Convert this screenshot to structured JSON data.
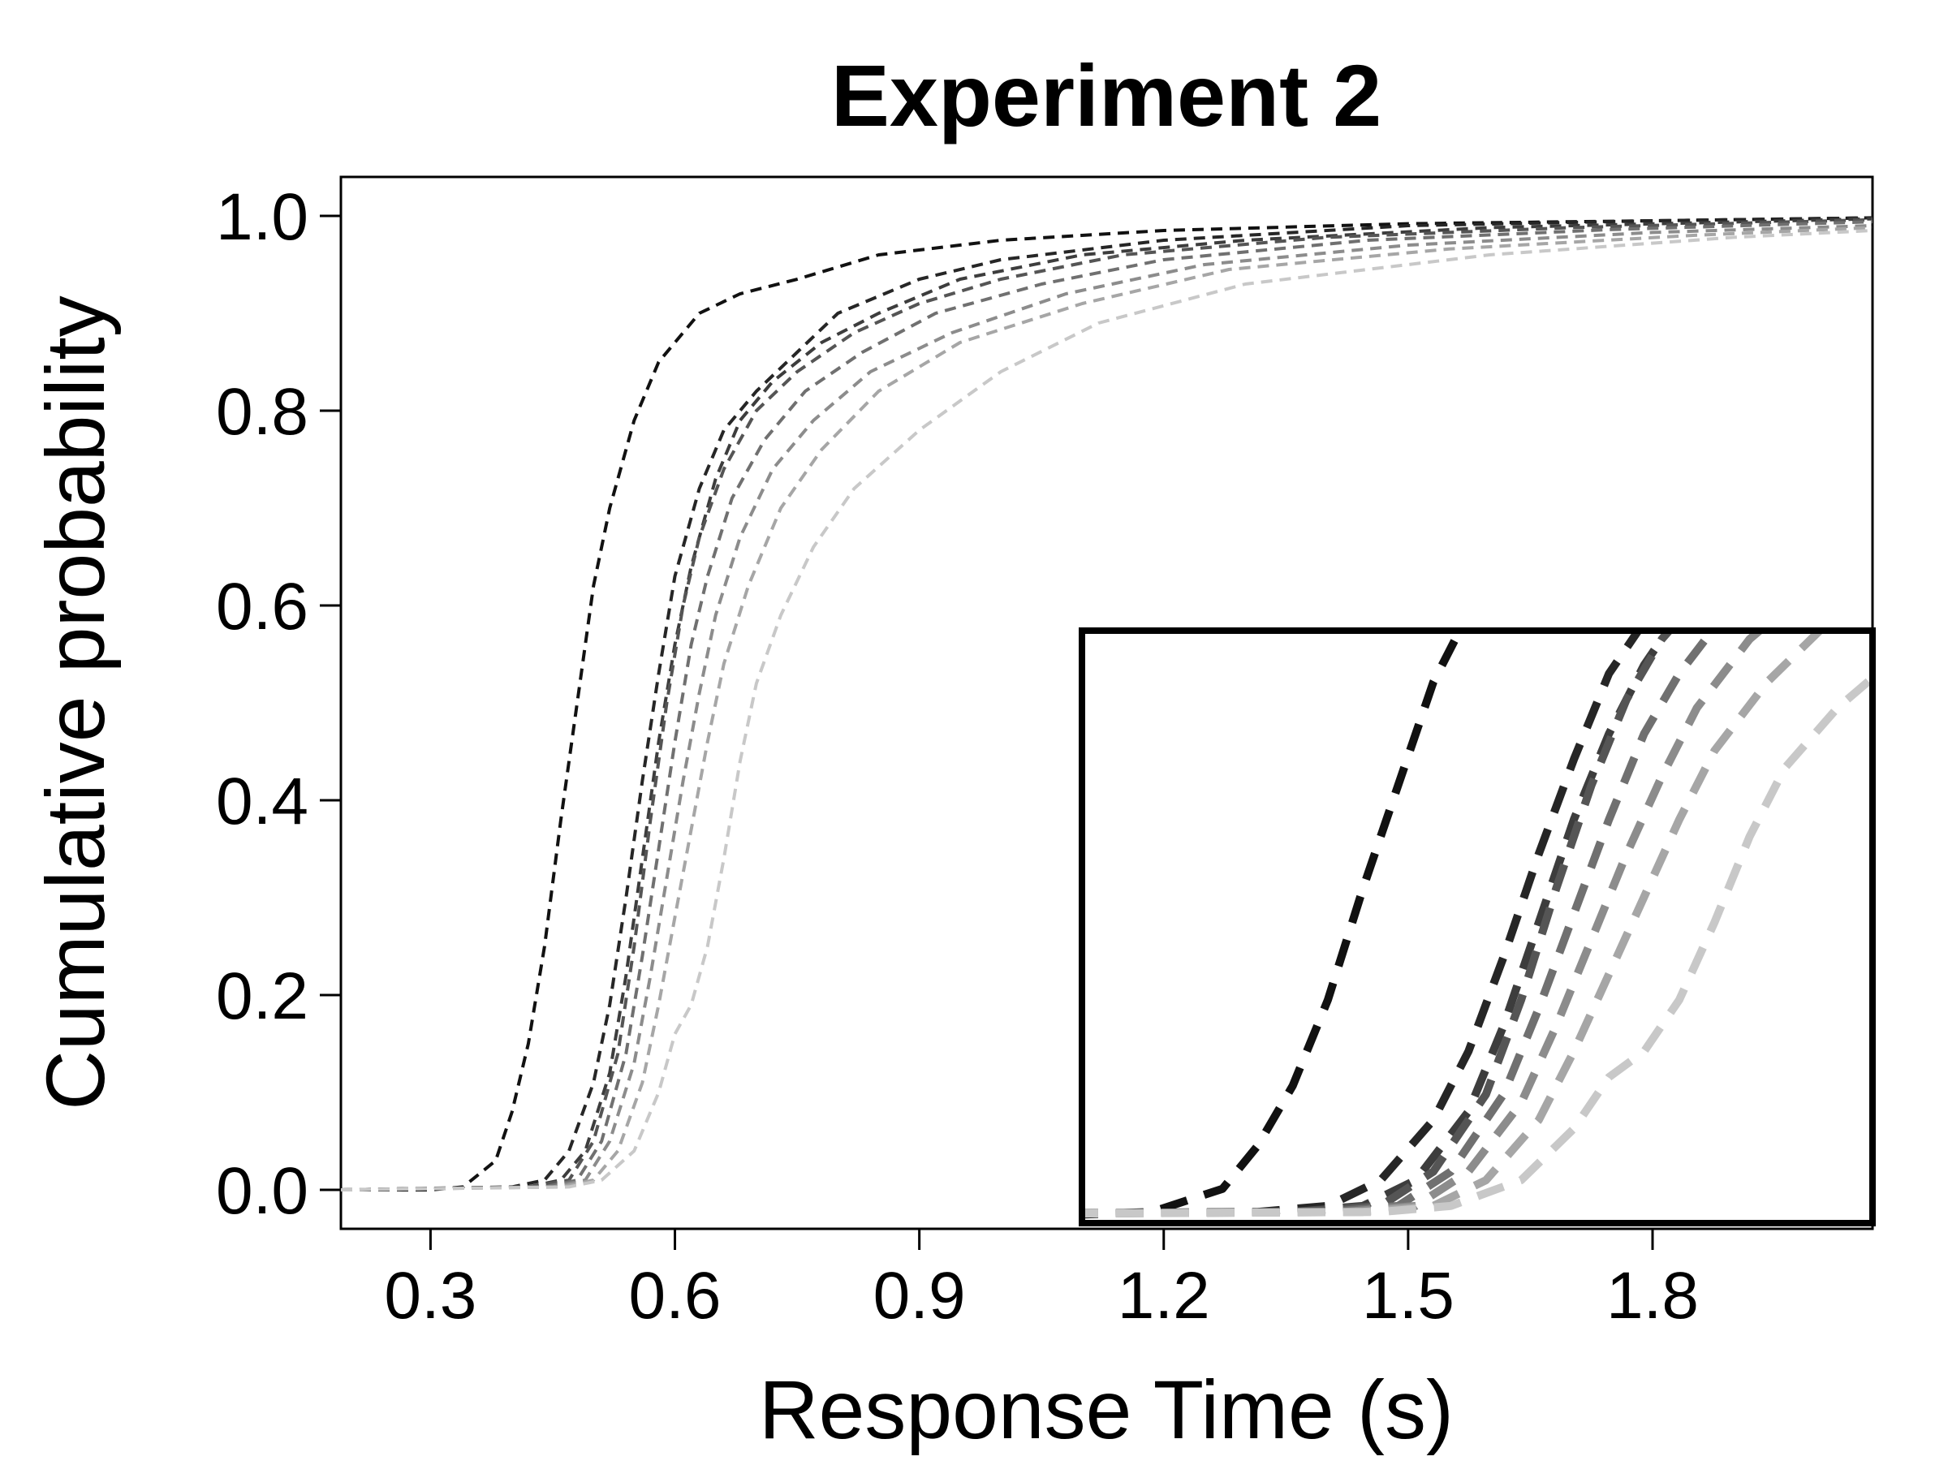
{
  "chart_data": {
    "type": "line",
    "title": "Experiment 2",
    "xlabel": "Response Time (s)",
    "ylabel": "Cumulative probability",
    "xlim": [
      0.19,
      2.07
    ],
    "ylim": [
      -0.04,
      1.04
    ],
    "xticks": [
      0.3,
      0.6,
      0.9,
      1.2,
      1.5,
      1.8
    ],
    "xtick_labels": [
      "0.3",
      "0.6",
      "0.9",
      "1.2",
      "1.5",
      "1.8"
    ],
    "yticks": [
      0.0,
      0.2,
      0.4,
      0.6,
      0.8,
      1.0
    ],
    "ytick_labels": [
      "0.0",
      "0.2",
      "0.4",
      "0.6",
      "0.8",
      "1.0"
    ],
    "line_style": "dashed",
    "grid": false,
    "inset": {
      "shown": true,
      "xlim": [
        0.3,
        0.75
      ],
      "ylim": [
        -0.01,
        0.68
      ]
    },
    "series": [
      {
        "color": "#111111",
        "points": [
          [
            0.19,
            0
          ],
          [
            0.3,
            0
          ],
          [
            0.34,
            0.003
          ],
          [
            0.38,
            0.03
          ],
          [
            0.4,
            0.08
          ],
          [
            0.42,
            0.15
          ],
          [
            0.44,
            0.25
          ],
          [
            0.46,
            0.38
          ],
          [
            0.48,
            0.5
          ],
          [
            0.5,
            0.62
          ],
          [
            0.52,
            0.7
          ],
          [
            0.55,
            0.79
          ],
          [
            0.58,
            0.85
          ],
          [
            0.6,
            0.87
          ],
          [
            0.63,
            0.9
          ],
          [
            0.68,
            0.92
          ],
          [
            0.75,
            0.935
          ],
          [
            0.85,
            0.96
          ],
          [
            1.0,
            0.975
          ],
          [
            1.2,
            0.985
          ],
          [
            1.5,
            0.992
          ],
          [
            1.8,
            0.995
          ],
          [
            2.07,
            0.998
          ]
        ]
      },
      {
        "color": "#262626",
        "points": [
          [
            0.19,
            0
          ],
          [
            0.4,
            0.003
          ],
          [
            0.44,
            0.01
          ],
          [
            0.47,
            0.04
          ],
          [
            0.5,
            0.11
          ],
          [
            0.52,
            0.19
          ],
          [
            0.54,
            0.3
          ],
          [
            0.56,
            0.42
          ],
          [
            0.58,
            0.53
          ],
          [
            0.6,
            0.63
          ],
          [
            0.63,
            0.72
          ],
          [
            0.66,
            0.78
          ],
          [
            0.7,
            0.82
          ],
          [
            0.75,
            0.86
          ],
          [
            0.8,
            0.9
          ],
          [
            0.9,
            0.935
          ],
          [
            1.0,
            0.955
          ],
          [
            1.2,
            0.975
          ],
          [
            1.5,
            0.99
          ],
          [
            1.8,
            0.995
          ],
          [
            2.07,
            0.998
          ]
        ]
      },
      {
        "color": "#3d3d3d",
        "points": [
          [
            0.19,
            0
          ],
          [
            0.42,
            0.003
          ],
          [
            0.46,
            0.01
          ],
          [
            0.49,
            0.04
          ],
          [
            0.52,
            0.12
          ],
          [
            0.54,
            0.22
          ],
          [
            0.56,
            0.34
          ],
          [
            0.58,
            0.46
          ],
          [
            0.6,
            0.56
          ],
          [
            0.62,
            0.64
          ],
          [
            0.65,
            0.73
          ],
          [
            0.68,
            0.79
          ],
          [
            0.72,
            0.83
          ],
          [
            0.78,
            0.87
          ],
          [
            0.85,
            0.9
          ],
          [
            0.95,
            0.935
          ],
          [
            1.1,
            0.96
          ],
          [
            1.3,
            0.975
          ],
          [
            1.6,
            0.988
          ],
          [
            2.07,
            0.997
          ]
        ]
      },
      {
        "color": "#555555",
        "points": [
          [
            0.19,
            0
          ],
          [
            0.42,
            0.003
          ],
          [
            0.47,
            0.01
          ],
          [
            0.5,
            0.05
          ],
          [
            0.53,
            0.14
          ],
          [
            0.55,
            0.25
          ],
          [
            0.57,
            0.38
          ],
          [
            0.59,
            0.5
          ],
          [
            0.61,
            0.6
          ],
          [
            0.63,
            0.67
          ],
          [
            0.66,
            0.74
          ],
          [
            0.7,
            0.8
          ],
          [
            0.75,
            0.84
          ],
          [
            0.82,
            0.88
          ],
          [
            0.9,
            0.91
          ],
          [
            1.0,
            0.935
          ],
          [
            1.15,
            0.96
          ],
          [
            1.4,
            0.978
          ],
          [
            1.7,
            0.988
          ],
          [
            2.07,
            0.996
          ]
        ]
      },
      {
        "color": "#707070",
        "points": [
          [
            0.19,
            0
          ],
          [
            0.44,
            0.003
          ],
          [
            0.48,
            0.01
          ],
          [
            0.51,
            0.05
          ],
          [
            0.54,
            0.14
          ],
          [
            0.56,
            0.24
          ],
          [
            0.58,
            0.35
          ],
          [
            0.6,
            0.46
          ],
          [
            0.62,
            0.56
          ],
          [
            0.64,
            0.63
          ],
          [
            0.67,
            0.71
          ],
          [
            0.71,
            0.77
          ],
          [
            0.76,
            0.82
          ],
          [
            0.83,
            0.86
          ],
          [
            0.92,
            0.9
          ],
          [
            1.05,
            0.93
          ],
          [
            1.2,
            0.955
          ],
          [
            1.45,
            0.975
          ],
          [
            1.75,
            0.986
          ],
          [
            2.07,
            0.994
          ]
        ]
      },
      {
        "color": "#8c8c8c",
        "points": [
          [
            0.19,
            0
          ],
          [
            0.45,
            0.003
          ],
          [
            0.49,
            0.01
          ],
          [
            0.52,
            0.05
          ],
          [
            0.55,
            0.13
          ],
          [
            0.57,
            0.22
          ],
          [
            0.59,
            0.32
          ],
          [
            0.61,
            0.42
          ],
          [
            0.63,
            0.51
          ],
          [
            0.65,
            0.59
          ],
          [
            0.68,
            0.67
          ],
          [
            0.72,
            0.74
          ],
          [
            0.77,
            0.79
          ],
          [
            0.84,
            0.84
          ],
          [
            0.94,
            0.88
          ],
          [
            1.08,
            0.92
          ],
          [
            1.25,
            0.95
          ],
          [
            1.5,
            0.97
          ],
          [
            1.8,
            0.983
          ],
          [
            2.07,
            0.99
          ]
        ]
      },
      {
        "color": "#a6a6a6",
        "points": [
          [
            0.19,
            0
          ],
          [
            0.46,
            0.003
          ],
          [
            0.5,
            0.01
          ],
          [
            0.53,
            0.04
          ],
          [
            0.56,
            0.11
          ],
          [
            0.58,
            0.19
          ],
          [
            0.6,
            0.28
          ],
          [
            0.62,
            0.37
          ],
          [
            0.64,
            0.46
          ],
          [
            0.66,
            0.54
          ],
          [
            0.69,
            0.62
          ],
          [
            0.73,
            0.7
          ],
          [
            0.78,
            0.76
          ],
          [
            0.85,
            0.82
          ],
          [
            0.95,
            0.87
          ],
          [
            1.1,
            0.91
          ],
          [
            1.28,
            0.945
          ],
          [
            1.55,
            0.966
          ],
          [
            1.85,
            0.98
          ],
          [
            2.07,
            0.988
          ]
        ]
      },
      {
        "color": "#c8c8c8",
        "points": [
          [
            0.19,
            0
          ],
          [
            0.47,
            0.003
          ],
          [
            0.51,
            0.01
          ],
          [
            0.55,
            0.04
          ],
          [
            0.58,
            0.1
          ],
          [
            0.6,
            0.16
          ],
          [
            0.62,
            0.19
          ],
          [
            0.64,
            0.25
          ],
          [
            0.66,
            0.34
          ],
          [
            0.68,
            0.44
          ],
          [
            0.7,
            0.52
          ],
          [
            0.73,
            0.59
          ],
          [
            0.77,
            0.66
          ],
          [
            0.82,
            0.72
          ],
          [
            0.9,
            0.78
          ],
          [
            1.0,
            0.84
          ],
          [
            1.12,
            0.89
          ],
          [
            1.3,
            0.93
          ],
          [
            1.6,
            0.96
          ],
          [
            1.9,
            0.978
          ],
          [
            2.07,
            0.985
          ]
        ]
      }
    ]
  }
}
